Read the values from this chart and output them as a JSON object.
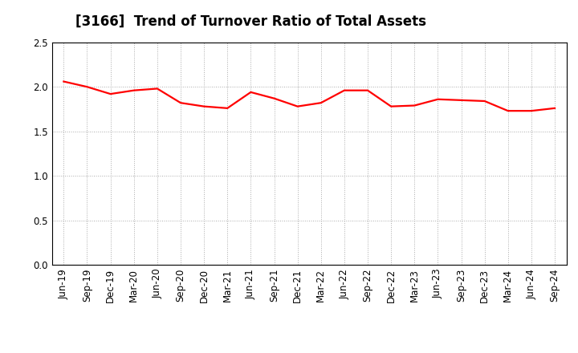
{
  "title": "[3166]  Trend of Turnover Ratio of Total Assets",
  "x_labels": [
    "Jun-19",
    "Sep-19",
    "Dec-19",
    "Mar-20",
    "Jun-20",
    "Sep-20",
    "Dec-20",
    "Mar-21",
    "Jun-21",
    "Sep-21",
    "Dec-21",
    "Mar-22",
    "Jun-22",
    "Sep-22",
    "Dec-22",
    "Mar-23",
    "Jun-23",
    "Sep-23",
    "Dec-23",
    "Mar-24",
    "Jun-24",
    "Sep-24"
  ],
  "values": [
    2.06,
    2.0,
    1.92,
    1.96,
    1.98,
    1.82,
    1.78,
    1.76,
    1.94,
    1.87,
    1.78,
    1.82,
    1.96,
    1.96,
    1.78,
    1.79,
    1.86,
    1.85,
    1.84,
    1.73,
    1.73,
    1.76
  ],
  "line_color": "#FF0000",
  "line_width": 1.6,
  "ylim": [
    0.0,
    2.5
  ],
  "yticks": [
    0.0,
    0.5,
    1.0,
    1.5,
    2.0,
    2.5
  ],
  "background_color": "#FFFFFF",
  "grid_color": "#AAAAAA",
  "title_fontsize": 12,
  "tick_fontsize": 8.5
}
